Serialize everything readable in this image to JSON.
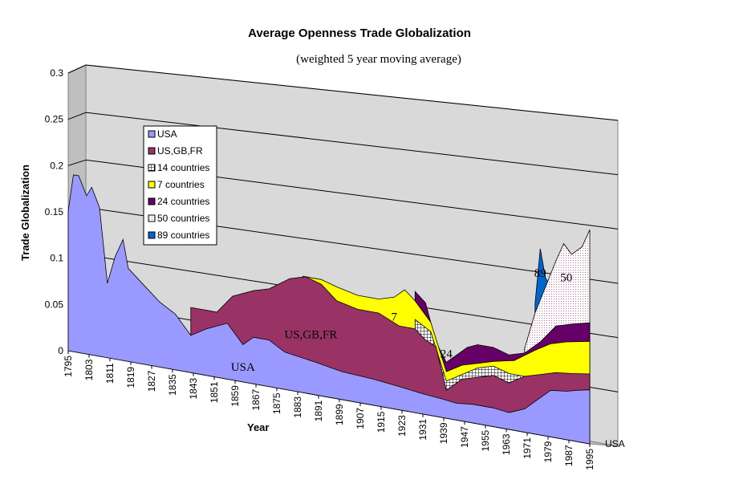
{
  "chart_data": {
    "type": "area",
    "title": "Average Openness Trade Globalization",
    "subtitle": "(weighted 5 year moving average)",
    "xlabel": "Year",
    "ylabel": "Trade Globalization",
    "ylim": [
      0,
      0.3
    ],
    "y_ticks": [
      "0",
      "0.05",
      "0.1",
      "0.15",
      "0.2",
      "0.25",
      "0.3"
    ],
    "x_ticks": [
      "1795",
      "1803",
      "1811",
      "1819",
      "1827",
      "1835",
      "1843",
      "1851",
      "1859",
      "1867",
      "1875",
      "1883",
      "1891",
      "1899",
      "1907",
      "1915",
      "1923",
      "1931",
      "1939",
      "1947",
      "1955",
      "1963",
      "1971",
      "1979",
      "1987",
      "1995"
    ],
    "depth_axis_label": "USA",
    "legend_position": "left",
    "grid": true,
    "series": [
      {
        "name": "USA",
        "color": "#9999ff",
        "label_on_chart": "USA",
        "points": [
          [
            1795,
            0.15
          ],
          [
            1797,
            0.19
          ],
          [
            1799,
            0.19
          ],
          [
            1802,
            0.17
          ],
          [
            1804,
            0.18
          ],
          [
            1807,
            0.16
          ],
          [
            1810,
            0.08
          ],
          [
            1813,
            0.11
          ],
          [
            1816,
            0.13
          ],
          [
            1818,
            0.1
          ],
          [
            1822,
            0.09
          ],
          [
            1826,
            0.08
          ],
          [
            1830,
            0.07
          ],
          [
            1836,
            0.06
          ],
          [
            1842,
            0.04
          ],
          [
            1848,
            0.05
          ],
          [
            1856,
            0.06
          ],
          [
            1862,
            0.04
          ],
          [
            1866,
            0.05
          ],
          [
            1872,
            0.05
          ],
          [
            1878,
            0.04
          ],
          [
            1890,
            0.035
          ],
          [
            1900,
            0.03
          ],
          [
            1912,
            0.028
          ],
          [
            1922,
            0.025
          ],
          [
            1930,
            0.022
          ],
          [
            1938,
            0.02
          ],
          [
            1944,
            0.018
          ],
          [
            1950,
            0.02
          ],
          [
            1958,
            0.02
          ],
          [
            1964,
            0.018
          ],
          [
            1970,
            0.025
          ],
          [
            1976,
            0.04
          ],
          [
            1980,
            0.05
          ],
          [
            1986,
            0.052
          ],
          [
            1990,
            0.055
          ],
          [
            1995,
            0.058
          ]
        ]
      },
      {
        "name": "US,GB,FR",
        "color": "#993366",
        "label_on_chart": "US,GB,FR",
        "points": [
          [
            1842,
            0.07
          ],
          [
            1848,
            0.07
          ],
          [
            1852,
            0.07
          ],
          [
            1858,
            0.09
          ],
          [
            1866,
            0.1
          ],
          [
            1872,
            0.105
          ],
          [
            1880,
            0.12
          ],
          [
            1886,
            0.125
          ],
          [
            1892,
            0.12
          ],
          [
            1898,
            0.105
          ],
          [
            1906,
            0.1
          ],
          [
            1914,
            0.1
          ],
          [
            1922,
            0.09
          ],
          [
            1928,
            0.09
          ],
          [
            1932,
            0.08
          ],
          [
            1936,
            0.075
          ],
          [
            1940,
            0.03
          ],
          [
            1946,
            0.045
          ],
          [
            1952,
            0.05
          ],
          [
            1958,
            0.055
          ],
          [
            1964,
            0.05
          ],
          [
            1970,
            0.06
          ],
          [
            1976,
            0.065
          ],
          [
            1982,
            0.07
          ],
          [
            1988,
            0.072
          ],
          [
            1995,
            0.075
          ]
        ]
      },
      {
        "name": "14 countries",
        "color": "#ffffff",
        "label_on_chart": "",
        "points": [
          [
            1928,
            0.1
          ],
          [
            1934,
            0.09
          ],
          [
            1940,
            0.04
          ],
          [
            1946,
            0.05
          ],
          [
            1952,
            0.06
          ],
          [
            1958,
            0.065
          ],
          [
            1964,
            0.06
          ],
          [
            1970,
            0.06
          ]
        ]
      },
      {
        "name": "7 countries",
        "color": "#ffff00",
        "label_on_chart": "7",
        "points": [
          [
            1885,
            0.125
          ],
          [
            1892,
            0.125
          ],
          [
            1898,
            0.12
          ],
          [
            1906,
            0.115
          ],
          [
            1914,
            0.115
          ],
          [
            1920,
            0.12
          ],
          [
            1924,
            0.13
          ],
          [
            1928,
            0.12
          ],
          [
            1934,
            0.1
          ],
          [
            1940,
            0.05
          ],
          [
            1946,
            0.06
          ],
          [
            1952,
            0.065
          ],
          [
            1958,
            0.07
          ],
          [
            1966,
            0.075
          ],
          [
            1974,
            0.09
          ],
          [
            1980,
            0.1
          ],
          [
            1986,
            0.105
          ],
          [
            1995,
            0.11
          ]
        ]
      },
      {
        "name": "24 countries",
        "color": "#660066",
        "label_on_chart": "24",
        "points": [
          [
            1928,
            0.13
          ],
          [
            1932,
            0.12
          ],
          [
            1936,
            0.08
          ],
          [
            1940,
            0.06
          ],
          [
            1944,
            0.07
          ],
          [
            1948,
            0.08
          ],
          [
            1952,
            0.085
          ],
          [
            1958,
            0.085
          ],
          [
            1964,
            0.08
          ],
          [
            1970,
            0.085
          ],
          [
            1976,
            0.1
          ],
          [
            1982,
            0.12
          ],
          [
            1988,
            0.125
          ],
          [
            1995,
            0.13
          ]
        ]
      },
      {
        "name": "50 countries",
        "color": "#ffe6f0",
        "label_on_chart": "50",
        "points": [
          [
            1970,
            0.09
          ],
          [
            1974,
            0.13
          ],
          [
            1978,
            0.16
          ],
          [
            1982,
            0.19
          ],
          [
            1985,
            0.21
          ],
          [
            1988,
            0.2
          ],
          [
            1992,
            0.21
          ],
          [
            1995,
            0.23
          ]
        ]
      },
      {
        "name": "89 countries",
        "color": "#0066cc",
        "label_on_chart": "89",
        "points": [
          [
            1974,
            0.14
          ],
          [
            1976,
            0.2
          ],
          [
            1978,
            0.17
          ],
          [
            1980,
            0.16
          ]
        ]
      }
    ]
  }
}
